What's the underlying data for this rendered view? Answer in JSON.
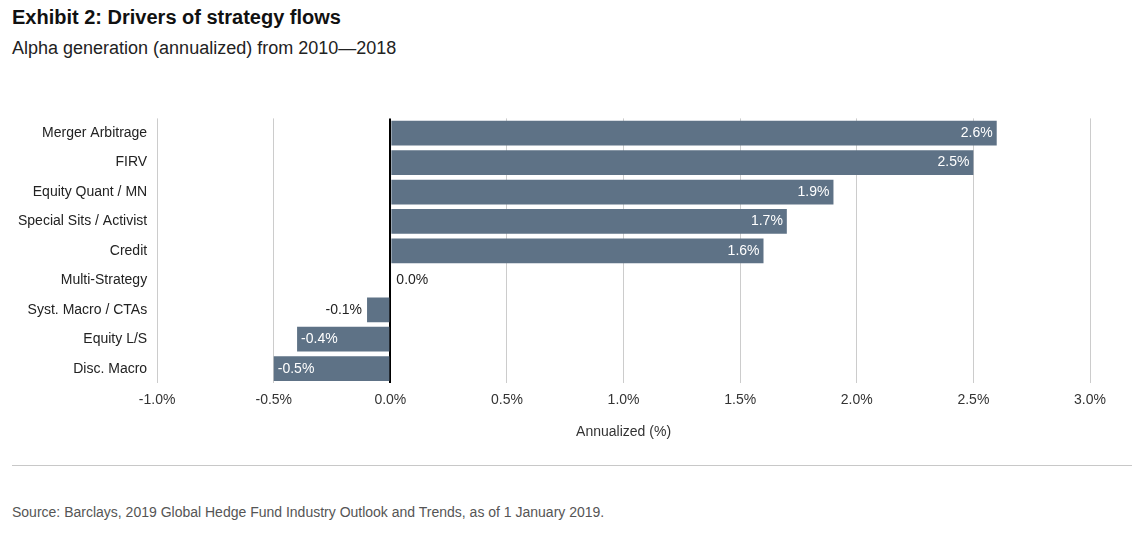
{
  "chart_data": {
    "type": "bar",
    "orientation": "horizontal",
    "title": "Exhibit 2: Drivers of strategy flows",
    "subtitle": "Alpha generation (annualized) from 2010—2018",
    "x_label": "Annualized (%)",
    "source": "Source: Barclays, 2019 Global Hedge Fund Industry Outlook and Trends, as of 1 January 2019.",
    "categories": [
      "Merger Arbitrage",
      "FIRV",
      "Equity Quant / MN",
      "Special Sits / Activist",
      "Credit",
      "Multi-Strategy",
      "Syst. Macro / CTAs",
      "Equity L/S",
      "Disc. Macro"
    ],
    "values": [
      2.6,
      2.5,
      1.9,
      1.7,
      1.6,
      0.0,
      -0.1,
      -0.4,
      -0.5
    ],
    "value_labels": [
      "2.6%",
      "2.5%",
      "1.9%",
      "1.7%",
      "1.6%",
      "0.0%",
      "-0.1%",
      "-0.4%",
      "-0.5%"
    ],
    "color": "#5e7286",
    "xlim": [
      -1,
      3
    ],
    "xticks": [
      {
        "value": -1,
        "label": "-1.0%"
      },
      {
        "value": -0.5,
        "label": "-0.5%"
      },
      {
        "value": 0,
        "label": "0.0%"
      },
      {
        "value": 0.5,
        "label": "0.5%"
      },
      {
        "value": 1,
        "label": "1.0%"
      },
      {
        "value": 1.5,
        "label": "1.5%"
      },
      {
        "value": 2,
        "label": "2.0%"
      },
      {
        "value": 2.5,
        "label": "2.5%"
      },
      {
        "value": 3,
        "label": "3.0%"
      }
    ],
    "grid": true,
    "data_labels": true
  }
}
